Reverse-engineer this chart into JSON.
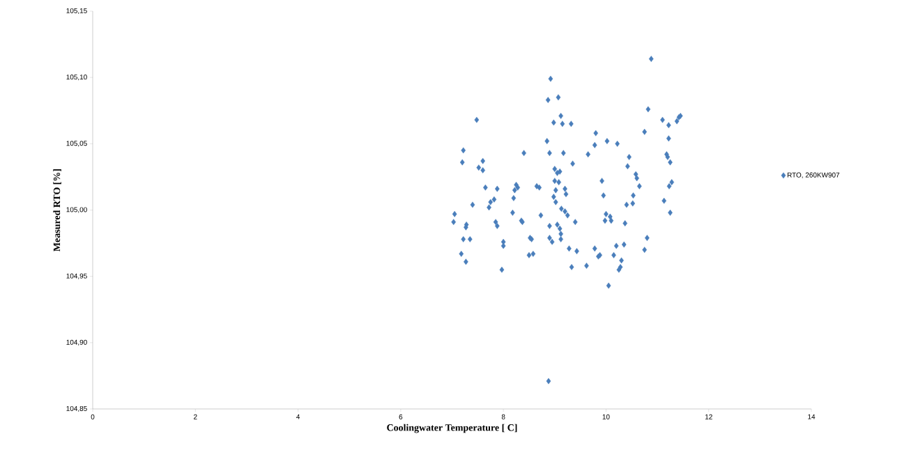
{
  "chart_data": {
    "type": "scatter",
    "xlabel": "Coolingwater Temperature [ C]",
    "ylabel": "Measured RTO [%]",
    "xlim": [
      0,
      14
    ],
    "xticks": [
      0,
      2,
      4,
      6,
      8,
      10,
      12,
      14
    ],
    "ylim": [
      104.85,
      105.15
    ],
    "yticks": [
      {
        "value": 104.85,
        "label": "104,85"
      },
      {
        "value": 104.9,
        "label": "104,90"
      },
      {
        "value": 104.95,
        "label": "104,95"
      },
      {
        "value": 105.0,
        "label": "105,00"
      },
      {
        "value": 105.05,
        "label": "105,05"
      },
      {
        "value": 105.1,
        "label": "105,10"
      },
      {
        "value": 105.15,
        "label": "105,15"
      }
    ],
    "grid": false,
    "legend": "right",
    "marker": "diamond",
    "series": [
      {
        "name": "RTO, 260KW907",
        "color": "#4a7ebb",
        "x": [
          7.05,
          7.03,
          7.22,
          7.2,
          7.18,
          7.22,
          7.27,
          7.28,
          7.27,
          7.35,
          7.4,
          7.48,
          7.52,
          7.6,
          7.6,
          7.65,
          7.72,
          7.75,
          7.82,
          7.85,
          7.88,
          7.88,
          7.97,
          8.0,
          8.0,
          8.18,
          8.2,
          8.22,
          8.25,
          8.28,
          8.35,
          8.37,
          8.4,
          8.5,
          8.52,
          8.55,
          8.58,
          8.65,
          8.7,
          8.73,
          8.87,
          8.85,
          8.9,
          8.92,
          8.88,
          8.9,
          8.9,
          8.95,
          8.98,
          8.98,
          9.0,
          9.0,
          9.02,
          9.02,
          9.05,
          9.05,
          9.07,
          9.08,
          9.1,
          9.1,
          9.12,
          9.12,
          9.13,
          9.12,
          9.15,
          9.17,
          9.2,
          9.22,
          9.2,
          9.25,
          9.28,
          9.33,
          9.32,
          9.35,
          9.4,
          9.43,
          9.62,
          9.65,
          9.78,
          9.8,
          9.78,
          9.85,
          9.88,
          9.92,
          9.95,
          9.98,
          10.0,
          10.02,
          10.05,
          10.08,
          10.1,
          10.15,
          10.2,
          10.22,
          10.25,
          10.28,
          10.3,
          10.35,
          10.37,
          10.4,
          10.42,
          10.45,
          10.52,
          10.53,
          10.58,
          10.6,
          10.65,
          10.75,
          10.75,
          10.8,
          10.82,
          10.88,
          11.1,
          11.13,
          11.18,
          11.2,
          11.22,
          11.22,
          11.23,
          11.25,
          11.28,
          11.25,
          11.38,
          11.42,
          11.45
        ],
        "values": [
          104.997,
          104.991,
          105.045,
          105.036,
          104.967,
          104.978,
          104.961,
          104.989,
          104.987,
          104.978,
          105.004,
          105.068,
          105.032,
          105.037,
          105.03,
          105.017,
          105.002,
          105.006,
          105.008,
          104.991,
          104.988,
          105.016,
          104.955,
          104.976,
          104.973,
          104.998,
          105.009,
          105.015,
          105.019,
          105.017,
          104.992,
          104.991,
          105.043,
          104.966,
          104.979,
          104.978,
          104.967,
          105.018,
          105.017,
          104.996,
          105.083,
          105.052,
          105.043,
          105.099,
          104.871,
          104.988,
          104.979,
          104.976,
          105.01,
          105.066,
          105.031,
          105.022,
          105.015,
          105.006,
          105.028,
          104.989,
          105.085,
          105.021,
          105.029,
          104.986,
          104.982,
          104.978,
          105.001,
          105.071,
          105.065,
          105.043,
          105.016,
          105.012,
          104.999,
          104.996,
          104.971,
          104.957,
          105.065,
          105.035,
          104.991,
          104.969,
          104.958,
          105.042,
          105.049,
          105.058,
          104.971,
          104.965,
          104.966,
          105.022,
          105.011,
          104.992,
          104.997,
          105.052,
          104.943,
          104.995,
          104.992,
          104.966,
          104.973,
          105.05,
          104.955,
          104.957,
          104.962,
          104.974,
          104.99,
          105.004,
          105.033,
          105.04,
          105.005,
          105.011,
          105.027,
          105.024,
          105.018,
          105.059,
          104.97,
          104.979,
          105.076,
          105.114,
          105.068,
          105.007,
          105.042,
          105.04,
          105.054,
          105.064,
          105.018,
          105.036,
          105.021,
          104.998,
          105.067,
          105.07,
          105.071
        ]
      }
    ]
  }
}
